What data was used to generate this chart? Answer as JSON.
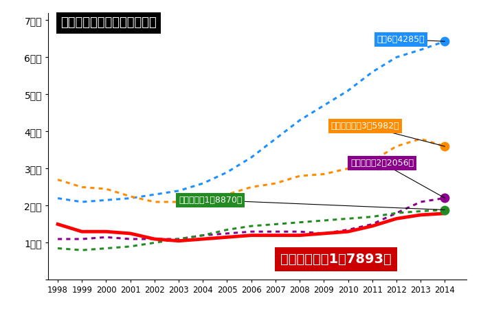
{
  "years": [
    1998,
    1999,
    2000,
    2001,
    2002,
    2003,
    2004,
    2005,
    2006,
    2007,
    2008,
    2009,
    2010,
    2011,
    2012,
    2013,
    2014
  ],
  "title": "ＡＳＥＡＮ５カ国の邦人推移",
  "series_order": [
    "タイ",
    "シンガポール",
    "マレーシア",
    "フィリピン",
    "インドネシア"
  ],
  "series": {
    "タイ": {
      "values": [
        22000,
        21000,
        21500,
        22000,
        23000,
        24000,
        26000,
        29000,
        33000,
        38000,
        43000,
        47000,
        51000,
        56000,
        60000,
        62000,
        64285
      ],
      "color": "#1e8fff",
      "linestyle": "dotted",
      "linewidth": 2.2,
      "label": "タイ6万4285人",
      "label_bg": "#1e8fff",
      "marker_color": "#1e8fff"
    },
    "シンガポール": {
      "values": [
        27000,
        25000,
        24500,
        22500,
        21000,
        21000,
        22000,
        23000,
        25000,
        26000,
        28000,
        28500,
        30000,
        32000,
        36000,
        38000,
        35982
      ],
      "color": "#ff8c00",
      "linestyle": "dotted",
      "linewidth": 2.2,
      "label": "シンガポール3万5982人",
      "label_bg": "#ff8c00",
      "marker_color": "#ff8c00"
    },
    "マレーシア": {
      "values": [
        11000,
        11000,
        11500,
        11000,
        11000,
        11000,
        12000,
        12500,
        13000,
        13000,
        13000,
        12500,
        13500,
        15000,
        18000,
        21000,
        22056
      ],
      "color": "#8b008b",
      "linestyle": "dotted",
      "linewidth": 2.2,
      "label": "マレーシア2万2056人",
      "label_bg": "#8b008b",
      "marker_color": "#8b008b"
    },
    "フィリピン": {
      "values": [
        8500,
        8000,
        8500,
        9000,
        10000,
        11000,
        12000,
        13500,
        14500,
        15000,
        15500,
        16000,
        16500,
        17000,
        18000,
        18500,
        18870
      ],
      "color": "#228b22",
      "linestyle": "dotted",
      "linewidth": 2.2,
      "label": "フィリピン1万8870人",
      "label_bg": "#228b22",
      "marker_color": "#228b22"
    },
    "インドネシア": {
      "values": [
        15000,
        13000,
        13000,
        12500,
        11000,
        10500,
        11000,
        11500,
        12000,
        12000,
        12000,
        12500,
        13000,
        14500,
        16500,
        17500,
        17893
      ],
      "color": "#ff0000",
      "linestyle": "solid",
      "linewidth": 3.5,
      "label": "インドネシア1万7893人",
      "label_bg": "#cc0000",
      "marker_color": "#ff0000"
    }
  },
  "yticks": [
    0,
    10000,
    20000,
    30000,
    40000,
    50000,
    60000,
    70000
  ],
  "ytick_labels": [
    "",
    "1万人",
    "2万人",
    "3万人",
    "4万人",
    "5万人",
    "6万人",
    "7万人"
  ],
  "ylim": [
    0,
    72000
  ],
  "xlim": [
    1997.6,
    2014.9
  ],
  "background_color": "white"
}
